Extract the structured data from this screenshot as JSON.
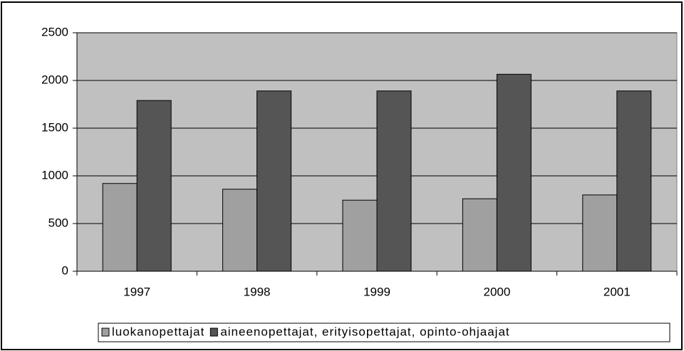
{
  "chart_data": {
    "type": "bar",
    "categories": [
      "1997",
      "1998",
      "1999",
      "2000",
      "2001"
    ],
    "series": [
      {
        "name": "luokanopettajat",
        "color": "#a0a0a0",
        "values": [
          920,
          860,
          745,
          760,
          800
        ]
      },
      {
        "name": "aineenopettajat, erityisopettajat, opinto-ohjaajat",
        "color": "#555555",
        "values": [
          1790,
          1890,
          1890,
          2065,
          1890
        ]
      }
    ],
    "ylim": [
      0,
      2500
    ],
    "yticks": [
      0,
      500,
      1000,
      1500,
      2000,
      2500
    ],
    "grid": true,
    "legend": "bottom"
  }
}
